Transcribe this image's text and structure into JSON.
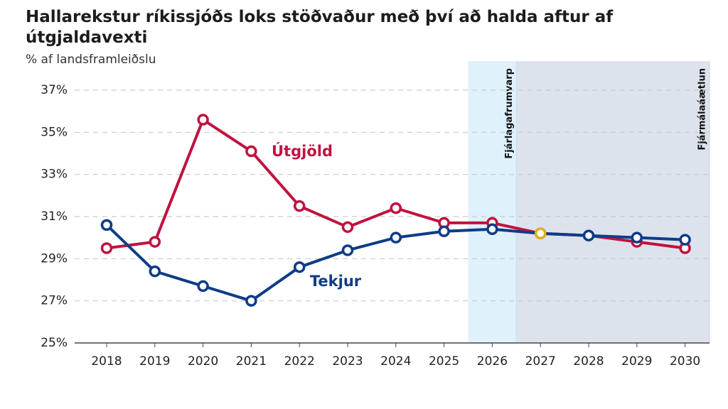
{
  "chart_data": {
    "type": "line",
    "title": "Hallarekstur ríkissjóðs loks stöðvaður með því að halda aftur af útgjaldavexti",
    "subtitle": "% af landsframleiðslu",
    "x": [
      "2018",
      "2019",
      "2020",
      "2021",
      "2022",
      "2023",
      "2024",
      "2025",
      "2026",
      "2027",
      "2028",
      "2029",
      "2030"
    ],
    "ylim": [
      25,
      37
    ],
    "yticks": [
      "25%",
      "27%",
      "29%",
      "31%",
      "33%",
      "35%",
      "37%"
    ],
    "grid": true,
    "series": [
      {
        "name": "Útgjöld",
        "color": "#c1123f",
        "values": [
          29.5,
          29.8,
          35.6,
          34.1,
          31.5,
          30.5,
          31.4,
          30.7,
          30.7,
          30.2,
          30.1,
          29.8,
          29.5
        ]
      },
      {
        "name": "Tekjur",
        "color": "#0e3c88",
        "values": [
          30.6,
          28.4,
          27.7,
          27.0,
          28.6,
          29.4,
          30.0,
          30.3,
          30.4,
          30.2,
          30.1,
          30.0,
          29.9
        ]
      }
    ],
    "highlight_point": {
      "x": "2027",
      "value": 30.2,
      "color": "#e0b21c"
    },
    "bands": [
      {
        "label": "Fjárlagafrumvarp",
        "from": "2026",
        "to": "2026",
        "color": "#dff1fb"
      },
      {
        "label": "Fjármálaáætlun",
        "from": "2027",
        "to": "2030",
        "color": "#dde3ed"
      }
    ]
  }
}
